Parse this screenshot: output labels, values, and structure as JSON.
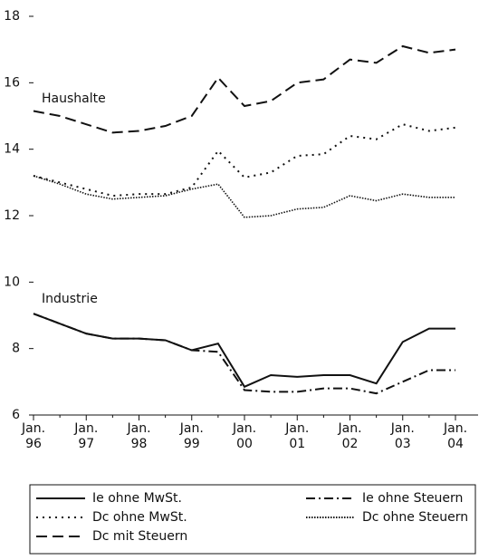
{
  "chart_data": {
    "type": "line",
    "categories": [
      "Jan. 96",
      null,
      "Jan. 97",
      null,
      "Jan. 98",
      null,
      "Jan. 99",
      null,
      "Jan. 00",
      null,
      "Jan. 01",
      null,
      "Jan. 02",
      null,
      "Jan. 03",
      null,
      "Jan. 04"
    ],
    "series": [
      {
        "name": "Ie ohne MwSt.",
        "color": "#111111",
        "dash": "solid",
        "values": [
          9.05,
          8.75,
          8.45,
          8.3,
          8.3,
          8.25,
          7.95,
          8.15,
          6.85,
          7.2,
          7.15,
          7.2,
          7.2,
          6.95,
          8.2,
          8.6,
          8.6
        ]
      },
      {
        "name": "Ie ohne Steuern",
        "color": "#111111",
        "dash": "dashdot",
        "values": [
          9.05,
          8.75,
          8.45,
          8.3,
          8.3,
          8.25,
          7.95,
          7.9,
          6.75,
          6.7,
          6.7,
          6.8,
          6.8,
          6.65,
          7.0,
          7.35,
          7.35
        ]
      },
      {
        "name": "Dc ohne MwSt.",
        "color": "#111111",
        "dash": "dotted",
        "values": [
          13.2,
          13.0,
          12.8,
          12.6,
          12.65,
          12.65,
          12.85,
          13.95,
          13.15,
          13.3,
          13.8,
          13.85,
          14.4,
          14.3,
          14.75,
          14.55,
          14.65
        ]
      },
      {
        "name": "Dc ohne Steuern",
        "color": "#111111",
        "dash": "densedot",
        "values": [
          13.2,
          12.95,
          12.65,
          12.5,
          12.55,
          12.6,
          12.8,
          12.95,
          11.95,
          12.0,
          12.2,
          12.25,
          12.6,
          12.45,
          12.65,
          12.55,
          12.55
        ]
      },
      {
        "name": "Dc mit Steuern",
        "color": "#111111",
        "dash": "dashed",
        "values": [
          15.15,
          15.0,
          14.75,
          14.5,
          14.55,
          14.7,
          15.0,
          16.15,
          15.3,
          15.45,
          16.0,
          16.1,
          16.7,
          16.6,
          17.1,
          16.9,
          17.0
        ]
      }
    ],
    "annotations": [
      "Haushalte",
      "Industrie"
    ],
    "ylim": [
      6,
      18
    ],
    "yticks": [
      6,
      8,
      10,
      12,
      14,
      16,
      18
    ],
    "grid": false
  }
}
